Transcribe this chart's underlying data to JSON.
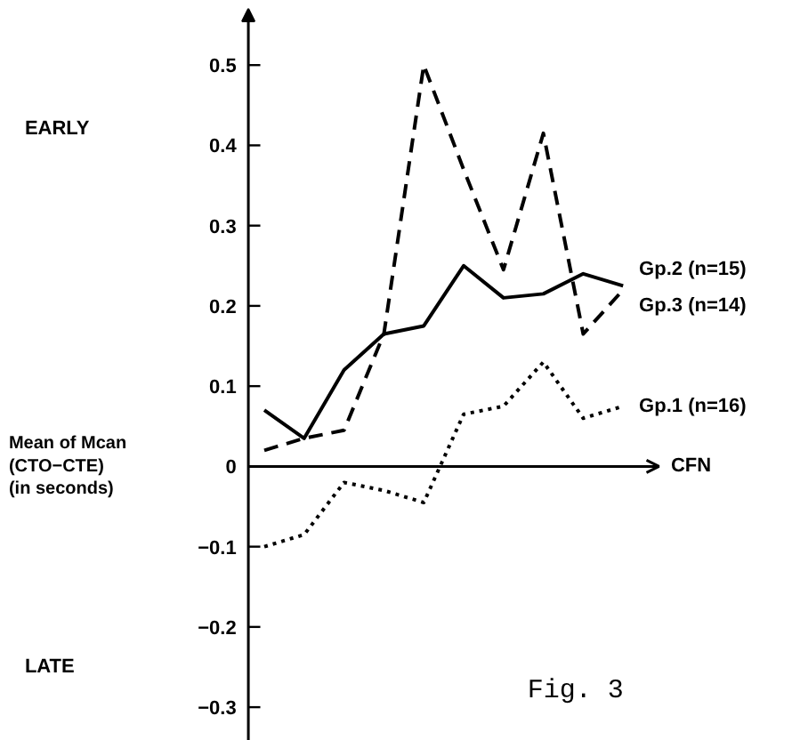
{
  "chart_data": {
    "type": "line",
    "xlabel": "CFN",
    "ylabel": "Mean of Mcan\n(CTO−CTE)\n(in seconds)",
    "categories": [
      null,
      null,
      null,
      null,
      null,
      null,
      null,
      null,
      null,
      null
    ],
    "series": [
      {
        "name": "Gp.2 (n=15)",
        "color": "#000000",
        "line_style": "solid",
        "values": [
          0.07,
          0.035,
          0.12,
          0.165,
          0.175,
          0.25,
          0.21,
          0.215,
          0.24,
          0.225
        ]
      },
      {
        "name": "Gp.3 (n=14)",
        "color": "#000000",
        "line_style": "dashed",
        "values": [
          0.02,
          0.035,
          0.045,
          0.165,
          0.5,
          0.37,
          0.245,
          0.415,
          0.165,
          0.22
        ]
      },
      {
        "name": "Gp.1 (n=16)",
        "color": "#000000",
        "line_style": "dotted",
        "values": [
          -0.1,
          -0.085,
          -0.02,
          -0.03,
          -0.045,
          0.065,
          0.075,
          0.13,
          0.06,
          0.075
        ]
      }
    ],
    "ylim": [
      -0.342,
      0.58
    ],
    "yticks": [
      {
        "value": -0.3,
        "label": "−0.3"
      },
      {
        "value": -0.2,
        "label": "−0.2"
      },
      {
        "value": -0.1,
        "label": "−0.1"
      },
      0,
      0.1,
      0.2,
      0.3,
      0.4,
      0.5
    ],
    "annotations": [
      "EARLY",
      "LATE",
      "Fig. 3"
    ]
  }
}
